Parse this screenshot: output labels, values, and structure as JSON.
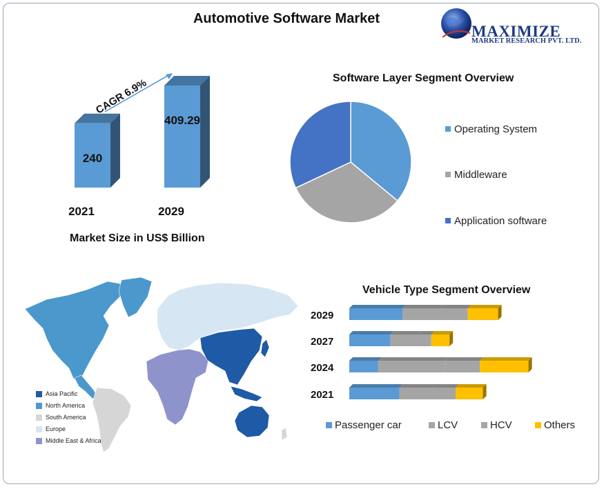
{
  "header": {
    "title": "Automotive Software Market",
    "logo": {
      "name": "MAXIMIZE",
      "subtitle": "MARKET RESEARCH PVT. LTD.",
      "icon": "globe-icon"
    }
  },
  "market_size": {
    "caption": "Market Size in US$ Billion",
    "cagr_label": "CAGR 6.9%"
  },
  "pie": {
    "title": "Software Layer Segment Overview",
    "legend": [
      "Operating System",
      "Middleware",
      "Application software"
    ]
  },
  "map": {
    "legend": [
      "Asia Pacific",
      "North America",
      "South America",
      "Europe",
      "Middle East & Africa"
    ],
    "colors": [
      "#1f5aa6",
      "#4a98cc",
      "#d6d6d6",
      "#d6e6f3",
      "#8f93cc"
    ]
  },
  "vehicle": {
    "title": "Vehicle Type Segment Overview",
    "legend": [
      "Passenger car",
      "LCV",
      "HCV",
      "Others"
    ]
  },
  "chart_data": [
    {
      "type": "bar",
      "categories": [
        "2021",
        "2029"
      ],
      "values": [
        240,
        409.29
      ],
      "xlabel": "Market Size in US$ Billion",
      "annotation": "CAGR 6.9%",
      "color": "#5b9bd5"
    },
    {
      "type": "pie",
      "title": "Software Layer Segment Overview",
      "labels": [
        "Operating System",
        "Middleware",
        "Application software"
      ],
      "values": [
        36,
        32,
        32
      ],
      "colors": [
        "#5b9bd5",
        "#a5a5a5",
        "#4472c4"
      ]
    },
    {
      "type": "bar",
      "orientation": "horizontal",
      "stacked": true,
      "title": "Vehicle Type Segment Overview",
      "categories": [
        "2029",
        "2027",
        "2024",
        "2021"
      ],
      "series": [
        {
          "name": "Passenger car",
          "values": [
            35,
            27,
            19,
            33
          ],
          "color": "#5b9bd5"
        },
        {
          "name": "LCV",
          "values": [
            25,
            18,
            44,
            22
          ],
          "color": "#a5a5a5"
        },
        {
          "name": "HCV",
          "values": [
            18,
            9,
            23,
            15
          ],
          "color": "#a5a5a5"
        },
        {
          "name": "Others",
          "values": [
            20,
            12,
            32,
            18
          ],
          "color": "#ffc000"
        }
      ]
    }
  ]
}
